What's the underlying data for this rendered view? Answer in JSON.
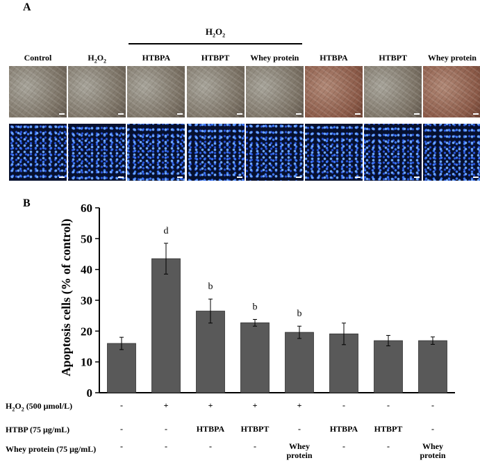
{
  "panel_a": {
    "letter": "A",
    "group_label": "H2O2",
    "images": [
      {
        "label": "Control",
        "tint": "bright"
      },
      {
        "label": "H2O2",
        "tint": "bright"
      },
      {
        "label": "HTBPA",
        "tint": "bright"
      },
      {
        "label": "HTBPT",
        "tint": "bright"
      },
      {
        "label": "Whey protein",
        "tint": "bright"
      },
      {
        "label": "HTBPA",
        "tint": "warm"
      },
      {
        "label": "HTBPT",
        "tint": "bright"
      },
      {
        "label": "Whey protein",
        "tint": "warm"
      }
    ]
  },
  "panel_b": {
    "letter": "B"
  },
  "chart_data": {
    "type": "bar",
    "ylabel": "Apoptosis cells (% of control)",
    "ylim": [
      0,
      60
    ],
    "yticks": [
      0,
      10,
      20,
      30,
      40,
      50,
      60
    ],
    "bar_color": "#595959",
    "values": [
      16,
      43.5,
      26.5,
      22.7,
      19.6,
      19.1,
      16.9,
      16.9
    ],
    "errors": [
      2.0,
      5.0,
      3.9,
      1.1,
      2.0,
      3.5,
      1.7,
      1.2
    ],
    "letters": [
      "",
      "d",
      "b",
      "b",
      "b",
      "",
      "",
      ""
    ]
  },
  "treatment_table": {
    "rows": [
      {
        "label": "H2O2 (500 μmol/L)",
        "cells": [
          "-",
          "+",
          "+",
          "+",
          "+",
          "-",
          "-",
          "-"
        ]
      },
      {
        "label": "HTBP (75 μg/mL)",
        "cells": [
          "-",
          "-",
          "HTBPA",
          "HTBPT",
          "-",
          "HTBPA",
          "HTBPT",
          "-"
        ]
      },
      {
        "label": "Whey protein (75 μg/mL)",
        "cells": [
          "-",
          "-",
          "-",
          "-",
          "Whey protein",
          "-",
          "-",
          "Whey protein"
        ]
      }
    ]
  }
}
